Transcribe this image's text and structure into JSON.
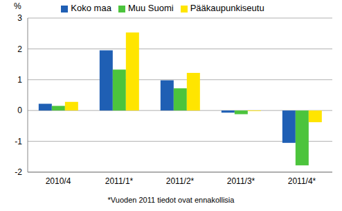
{
  "chart_data": {
    "type": "bar",
    "y_label": "%",
    "footnote": "*Vuoden 2011 tiedot ovat ennakollisia",
    "categories": [
      "2010/4",
      "2011/1*",
      "2011/2*",
      "2011/3*",
      "2011/4*"
    ],
    "series": [
      {
        "name": "Koko maa",
        "color": "#1f5fb4",
        "values": [
          0.22,
          1.95,
          0.98,
          -0.07,
          -1.05
        ]
      },
      {
        "name": "Muu Suomi",
        "color": "#4cc43c",
        "values": [
          0.15,
          1.33,
          0.72,
          -0.12,
          -1.78
        ]
      },
      {
        "name": "Pääkaupunkiseutu",
        "color": "#ffe500",
        "values": [
          0.28,
          2.53,
          1.22,
          -0.02,
          -0.38
        ]
      }
    ],
    "ylim": [
      -2,
      3
    ],
    "yticks": [
      -2,
      -1,
      0,
      1,
      2,
      3
    ],
    "grid": true,
    "legend": "top"
  }
}
